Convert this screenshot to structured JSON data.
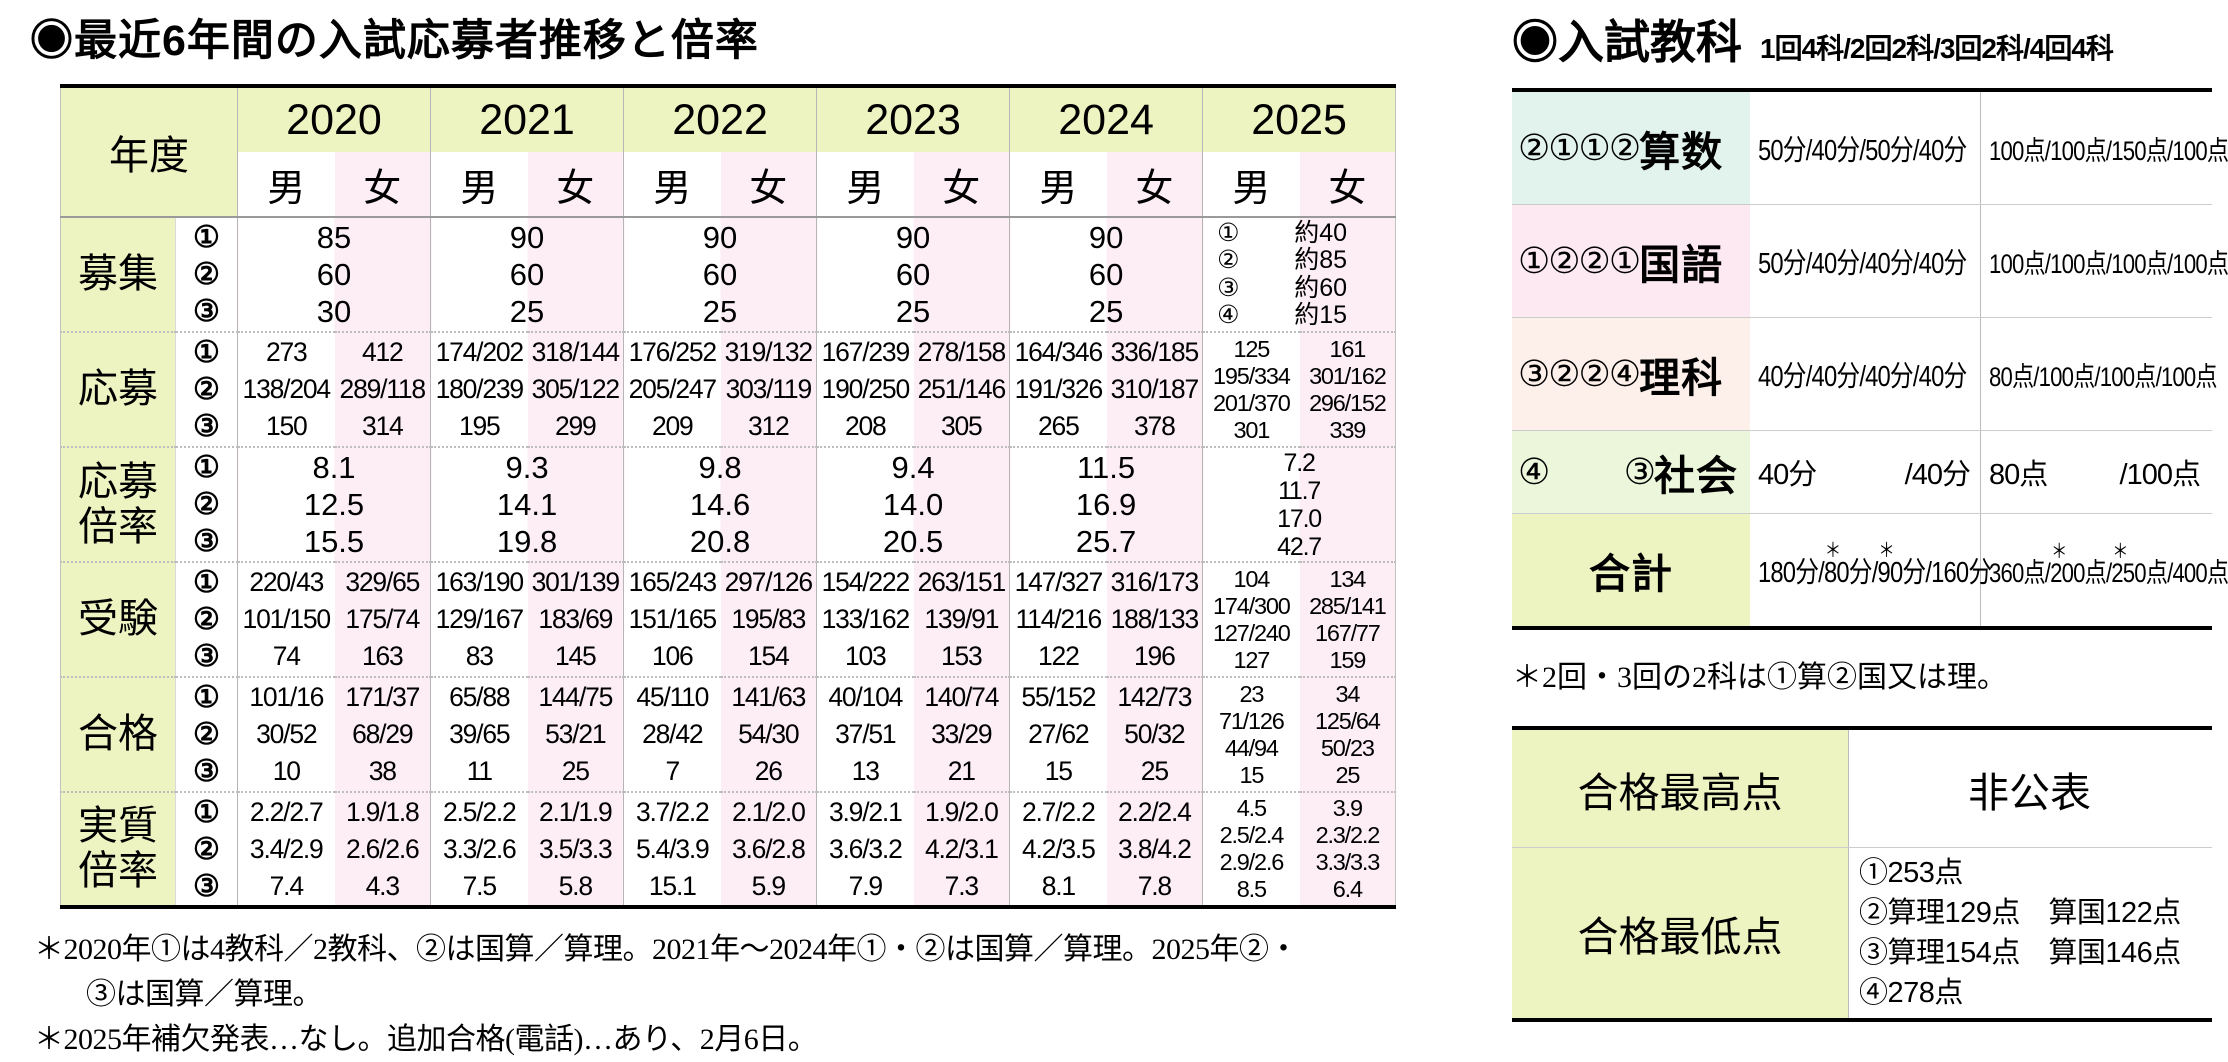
{
  "left": {
    "title": "◉最近6年間の入試応募者推移と倍率",
    "table": {
      "corner": "年度",
      "male": "男",
      "female": "女",
      "years": [
        "2020",
        "2021",
        "2022",
        "2023",
        "2024",
        "2025"
      ],
      "rows": [
        {
          "key": "recruit",
          "label": [
            "募集"
          ],
          "circles": [
            "①",
            "②",
            "③"
          ],
          "type": "merged",
          "cells": [
            {
              "lines": [
                "85",
                "60",
                "30"
              ]
            },
            {
              "lines": [
                "90",
                "60",
                "25"
              ]
            },
            {
              "lines": [
                "90",
                "60",
                "25"
              ]
            },
            {
              "lines": [
                "90",
                "60",
                "25"
              ]
            },
            {
              "lines": [
                "90",
                "60",
                "25"
              ]
            },
            {
              "pairs": [
                [
                  "①",
                  "約40"
                ],
                [
                  "②",
                  "約85"
                ],
                [
                  "③",
                  "約60"
                ],
                [
                  "④",
                  "約15"
                ]
              ]
            }
          ]
        },
        {
          "key": "applicants",
          "label": [
            "応募"
          ],
          "circles": [
            "①",
            "②",
            "③"
          ],
          "type": "mf",
          "cells": [
            {
              "m": [
                "273",
                "138/204",
                "150"
              ],
              "f": [
                "412",
                "289/118",
                "314"
              ]
            },
            {
              "m": [
                "174/202",
                "180/239",
                "195"
              ],
              "f": [
                "318/144",
                "305/122",
                "299"
              ]
            },
            {
              "m": [
                "176/252",
                "205/247",
                "209"
              ],
              "f": [
                "319/132",
                "303/119",
                "312"
              ]
            },
            {
              "m": [
                "167/239",
                "190/250",
                "208"
              ],
              "f": [
                "278/158",
                "251/146",
                "305"
              ]
            },
            {
              "m": [
                "164/346",
                "191/326",
                "265"
              ],
              "f": [
                "336/185",
                "310/187",
                "378"
              ]
            },
            {
              "m": [
                "125",
                "195/334",
                "201/370",
                "301"
              ],
              "f": [
                "161",
                "301/162",
                "296/152",
                "339"
              ]
            }
          ]
        },
        {
          "key": "apply-ratio",
          "label": [
            "応募",
            "倍率"
          ],
          "circles": [
            "①",
            "②",
            "③"
          ],
          "type": "merged",
          "cells": [
            {
              "lines": [
                "8.1",
                "12.5",
                "15.5"
              ]
            },
            {
              "lines": [
                "9.3",
                "14.1",
                "19.8"
              ]
            },
            {
              "lines": [
                "9.8",
                "14.6",
                "20.8"
              ]
            },
            {
              "lines": [
                "9.4",
                "14.0",
                "20.5"
              ]
            },
            {
              "lines": [
                "11.5",
                "16.9",
                "25.7"
              ]
            },
            {
              "lines": [
                "7.2",
                "11.7",
                "17.0",
                "42.7"
              ]
            }
          ]
        },
        {
          "key": "examinees",
          "label": [
            "受験"
          ],
          "circles": [
            "①",
            "②",
            "③"
          ],
          "type": "mf",
          "cells": [
            {
              "m": [
                "220/43",
                "101/150",
                "74"
              ],
              "f": [
                "329/65",
                "175/74",
                "163"
              ]
            },
            {
              "m": [
                "163/190",
                "129/167",
                "83"
              ],
              "f": [
                "301/139",
                "183/69",
                "145"
              ]
            },
            {
              "m": [
                "165/243",
                "151/165",
                "106"
              ],
              "f": [
                "297/126",
                "195/83",
                "154"
              ]
            },
            {
              "m": [
                "154/222",
                "133/162",
                "103"
              ],
              "f": [
                "263/151",
                "139/91",
                "153"
              ]
            },
            {
              "m": [
                "147/327",
                "114/216",
                "122"
              ],
              "f": [
                "316/173",
                "188/133",
                "196"
              ]
            },
            {
              "m": [
                "104",
                "174/300",
                "127/240",
                "127"
              ],
              "f": [
                "134",
                "285/141",
                "167/77",
                "159"
              ]
            }
          ]
        },
        {
          "key": "passed",
          "label": [
            "合格"
          ],
          "circles": [
            "①",
            "②",
            "③"
          ],
          "type": "mf",
          "cells": [
            {
              "m": [
                "101/16",
                "30/52",
                "10"
              ],
              "f": [
                "171/37",
                "68/29",
                "38"
              ]
            },
            {
              "m": [
                "65/88",
                "39/65",
                "11"
              ],
              "f": [
                "144/75",
                "53/21",
                "25"
              ]
            },
            {
              "m": [
                "45/110",
                "28/42",
                "7"
              ],
              "f": [
                "141/63",
                "54/30",
                "26"
              ]
            },
            {
              "m": [
                "40/104",
                "37/51",
                "13"
              ],
              "f": [
                "140/74",
                "33/29",
                "21"
              ]
            },
            {
              "m": [
                "55/152",
                "27/62",
                "15"
              ],
              "f": [
                "142/73",
                "50/32",
                "25"
              ]
            },
            {
              "m": [
                "23",
                "71/126",
                "44/94",
                "15"
              ],
              "f": [
                "34",
                "125/64",
                "50/23",
                "25"
              ]
            }
          ]
        },
        {
          "key": "actual-ratio",
          "label": [
            "実質",
            "倍率"
          ],
          "circles": [
            "①",
            "②",
            "③"
          ],
          "type": "mf",
          "cells": [
            {
              "m": [
                "2.2/2.7",
                "3.4/2.9",
                "7.4"
              ],
              "f": [
                "1.9/1.8",
                "2.6/2.6",
                "4.3"
              ]
            },
            {
              "m": [
                "2.5/2.2",
                "3.3/2.6",
                "7.5"
              ],
              "f": [
                "2.1/1.9",
                "3.5/3.3",
                "5.8"
              ]
            },
            {
              "m": [
                "3.7/2.2",
                "5.4/3.9",
                "15.1"
              ],
              "f": [
                "2.1/2.0",
                "3.6/2.8",
                "5.9"
              ]
            },
            {
              "m": [
                "3.9/2.1",
                "3.6/3.2",
                "7.9"
              ],
              "f": [
                "1.9/2.0",
                "4.2/3.1",
                "7.3"
              ]
            },
            {
              "m": [
                "2.7/2.2",
                "4.2/3.5",
                "8.1"
              ],
              "f": [
                "2.2/2.4",
                "3.8/4.2",
                "7.8"
              ]
            },
            {
              "m": [
                "4.5",
                "2.5/2.4",
                "2.9/2.6",
                "8.5"
              ],
              "f": [
                "3.9",
                "2.3/2.2",
                "3.3/3.3",
                "6.4"
              ]
            }
          ]
        }
      ]
    },
    "footnotes": [
      {
        "text": "＊2020年①は4教科／2教科、②は国算／算理。2021年～2024年①・②は国算／算理。2025年②・",
        "indent": false
      },
      {
        "text": "③は国算／算理。",
        "indent": true
      },
      {
        "text": "＊2025年補欠発表…なし。追加合格(電話)…あり、2月6日。",
        "indent": false
      }
    ]
  },
  "right": {
    "title": "◉入試教科",
    "subtitle": "1回4科/2回2科/3回2科/4回4科",
    "subjects": {
      "rows": [
        {
          "key": "math",
          "prefix": "②①①②",
          "name": "算数",
          "time": {
            "text": "50分/40分/50分/40分"
          },
          "points": {
            "text": "100点/100点/150点/100点"
          },
          "bg": "#e2f3ee"
        },
        {
          "key": "japanese",
          "prefix": "①②②①",
          "name": "国語",
          "time": {
            "text": "50分/40分/40分/40分"
          },
          "points": {
            "text": "100点/100点/100点/100点"
          },
          "bg": "#fce9f1"
        },
        {
          "key": "science",
          "prefix": "③②②④",
          "name": "理科",
          "time": {
            "text": "40分/40分/40分/40分"
          },
          "points": {
            "text": "80点/100点/100点/100点"
          },
          "bg": "#fdefe9"
        },
        {
          "key": "social",
          "prefix": "④",
          "prefix_right": "③",
          "name": "社会",
          "time": {
            "l": "40分",
            "r": "/40分"
          },
          "points": {
            "l": "80点",
            "r": "/100点"
          },
          "bg": "#ecf6db",
          "short": true
        },
        {
          "key": "total",
          "name": "合計",
          "total": true,
          "time": {
            "segs": [
              "180分/",
              "*80分",
              "/",
              "*90分",
              "/160分"
            ]
          },
          "points": {
            "segs": [
              "360点/",
              "*200点",
              "/",
              "*250点",
              "/400点"
            ]
          },
          "bg": "#edf4c2"
        }
      ],
      "footnote": "＊2回・3回の2科は①算②国又は理。"
    },
    "scores": {
      "rows": [
        {
          "key": "highest",
          "label": "合格最高点",
          "value": "非公表"
        },
        {
          "key": "lowest",
          "label": "合格最低点",
          "lines": [
            "①253点",
            "②算理129点　算国122点",
            "③算理154点　算国146点",
            "④278点"
          ],
          "tall": true
        }
      ]
    }
  }
}
